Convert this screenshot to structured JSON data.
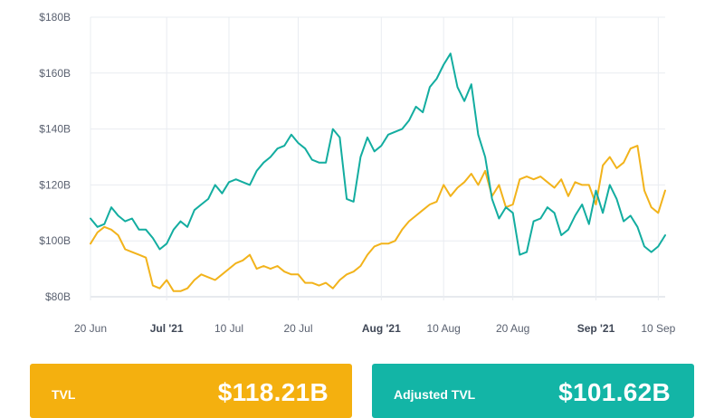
{
  "colors": {
    "tvl": "#f2b31b",
    "adjusted": "#13ada0"
  },
  "cards": {
    "tvl": {
      "label": "TVL",
      "value": "$118.21B"
    },
    "adjusted": {
      "label": "Adjusted TVL",
      "value": "$101.62B"
    }
  },
  "chart_data": {
    "type": "line",
    "ylim": [
      80,
      180
    ],
    "y_ticks": [
      "$80B",
      "$100B",
      "$120B",
      "$140B",
      "$160B",
      "$180B"
    ],
    "x_ticks": [
      {
        "label": "20 Jun",
        "day": 0,
        "major": false
      },
      {
        "label": "Jul '21",
        "day": 11,
        "major": true
      },
      {
        "label": "10 Jul",
        "day": 20,
        "major": false
      },
      {
        "label": "20 Jul",
        "day": 30,
        "major": false
      },
      {
        "label": "Aug '21",
        "day": 42,
        "major": true
      },
      {
        "label": "10 Aug",
        "day": 51,
        "major": false
      },
      {
        "label": "20 Aug",
        "day": 61,
        "major": false
      },
      {
        "label": "Sep '21",
        "day": 73,
        "major": true
      },
      {
        "label": "10 Sep",
        "day": 82,
        "major": false
      }
    ],
    "grid": true,
    "series": [
      {
        "key": "tvl",
        "points": [
          [
            0,
            99
          ],
          [
            1,
            103
          ],
          [
            2,
            105
          ],
          [
            3,
            104
          ],
          [
            4,
            102
          ],
          [
            5,
            97
          ],
          [
            6,
            96
          ],
          [
            7,
            95
          ],
          [
            8,
            94
          ],
          [
            9,
            84
          ],
          [
            10,
            83
          ],
          [
            11,
            86
          ],
          [
            12,
            82
          ],
          [
            13,
            82
          ],
          [
            14,
            83
          ],
          [
            15,
            86
          ],
          [
            16,
            88
          ],
          [
            17,
            87
          ],
          [
            18,
            86
          ],
          [
            19,
            88
          ],
          [
            20,
            90
          ],
          [
            21,
            92
          ],
          [
            22,
            93
          ],
          [
            23,
            95
          ],
          [
            24,
            90
          ],
          [
            25,
            91
          ],
          [
            26,
            90
          ],
          [
            27,
            91
          ],
          [
            28,
            89
          ],
          [
            29,
            88
          ],
          [
            30,
            88
          ],
          [
            31,
            85
          ],
          [
            32,
            85
          ],
          [
            33,
            84
          ],
          [
            34,
            85
          ],
          [
            35,
            83
          ],
          [
            36,
            86
          ],
          [
            37,
            88
          ],
          [
            38,
            89
          ],
          [
            39,
            91
          ],
          [
            40,
            95
          ],
          [
            41,
            98
          ],
          [
            42,
            99
          ],
          [
            43,
            99
          ],
          [
            44,
            100
          ],
          [
            45,
            104
          ],
          [
            46,
            107
          ],
          [
            47,
            109
          ],
          [
            48,
            111
          ],
          [
            49,
            113
          ],
          [
            50,
            114
          ],
          [
            51,
            120
          ],
          [
            52,
            116
          ],
          [
            53,
            119
          ],
          [
            54,
            121
          ],
          [
            55,
            124
          ],
          [
            56,
            120
          ],
          [
            57,
            125
          ],
          [
            58,
            116
          ],
          [
            59,
            120
          ],
          [
            60,
            112
          ],
          [
            61,
            113
          ],
          [
            62,
            122
          ],
          [
            63,
            123
          ],
          [
            64,
            122
          ],
          [
            65,
            123
          ],
          [
            66,
            121
          ],
          [
            67,
            119
          ],
          [
            68,
            122
          ],
          [
            69,
            116
          ],
          [
            70,
            121
          ],
          [
            71,
            120
          ],
          [
            72,
            120
          ],
          [
            73,
            113
          ],
          [
            74,
            127
          ],
          [
            75,
            130
          ],
          [
            76,
            126
          ],
          [
            77,
            128
          ],
          [
            78,
            133
          ],
          [
            79,
            134
          ],
          [
            80,
            118
          ],
          [
            81,
            112
          ],
          [
            82,
            110
          ],
          [
            83,
            118
          ]
        ]
      },
      {
        "key": "adjusted",
        "points": [
          [
            0,
            108
          ],
          [
            1,
            105
          ],
          [
            2,
            106
          ],
          [
            3,
            112
          ],
          [
            4,
            109
          ],
          [
            5,
            107
          ],
          [
            6,
            108
          ],
          [
            7,
            104
          ],
          [
            8,
            104
          ],
          [
            9,
            101
          ],
          [
            10,
            97
          ],
          [
            11,
            99
          ],
          [
            12,
            104
          ],
          [
            13,
            107
          ],
          [
            14,
            105
          ],
          [
            15,
            111
          ],
          [
            16,
            113
          ],
          [
            17,
            115
          ],
          [
            18,
            120
          ],
          [
            19,
            117
          ],
          [
            20,
            121
          ],
          [
            21,
            122
          ],
          [
            22,
            121
          ],
          [
            23,
            120
          ],
          [
            24,
            125
          ],
          [
            25,
            128
          ],
          [
            26,
            130
          ],
          [
            27,
            133
          ],
          [
            28,
            134
          ],
          [
            29,
            138
          ],
          [
            30,
            135
          ],
          [
            31,
            133
          ],
          [
            32,
            129
          ],
          [
            33,
            128
          ],
          [
            34,
            128
          ],
          [
            35,
            140
          ],
          [
            36,
            137
          ],
          [
            37,
            115
          ],
          [
            38,
            114
          ],
          [
            39,
            130
          ],
          [
            40,
            137
          ],
          [
            41,
            132
          ],
          [
            42,
            134
          ],
          [
            43,
            138
          ],
          [
            44,
            139
          ],
          [
            45,
            140
          ],
          [
            46,
            143
          ],
          [
            47,
            148
          ],
          [
            48,
            146
          ],
          [
            49,
            155
          ],
          [
            50,
            158
          ],
          [
            51,
            163
          ],
          [
            52,
            167
          ],
          [
            53,
            155
          ],
          [
            54,
            150
          ],
          [
            55,
            156
          ],
          [
            56,
            138
          ],
          [
            57,
            130
          ],
          [
            58,
            115
          ],
          [
            59,
            108
          ],
          [
            60,
            112
          ],
          [
            61,
            110
          ],
          [
            62,
            95
          ],
          [
            63,
            96
          ],
          [
            64,
            107
          ],
          [
            65,
            108
          ],
          [
            66,
            112
          ],
          [
            67,
            110
          ],
          [
            68,
            102
          ],
          [
            69,
            104
          ],
          [
            70,
            109
          ],
          [
            71,
            113
          ],
          [
            72,
            106
          ],
          [
            73,
            118
          ],
          [
            74,
            110
          ],
          [
            75,
            120
          ],
          [
            76,
            115
          ],
          [
            77,
            107
          ],
          [
            78,
            109
          ],
          [
            79,
            105
          ],
          [
            80,
            98
          ],
          [
            81,
            96
          ],
          [
            82,
            98
          ],
          [
            83,
            102
          ]
        ]
      }
    ]
  }
}
